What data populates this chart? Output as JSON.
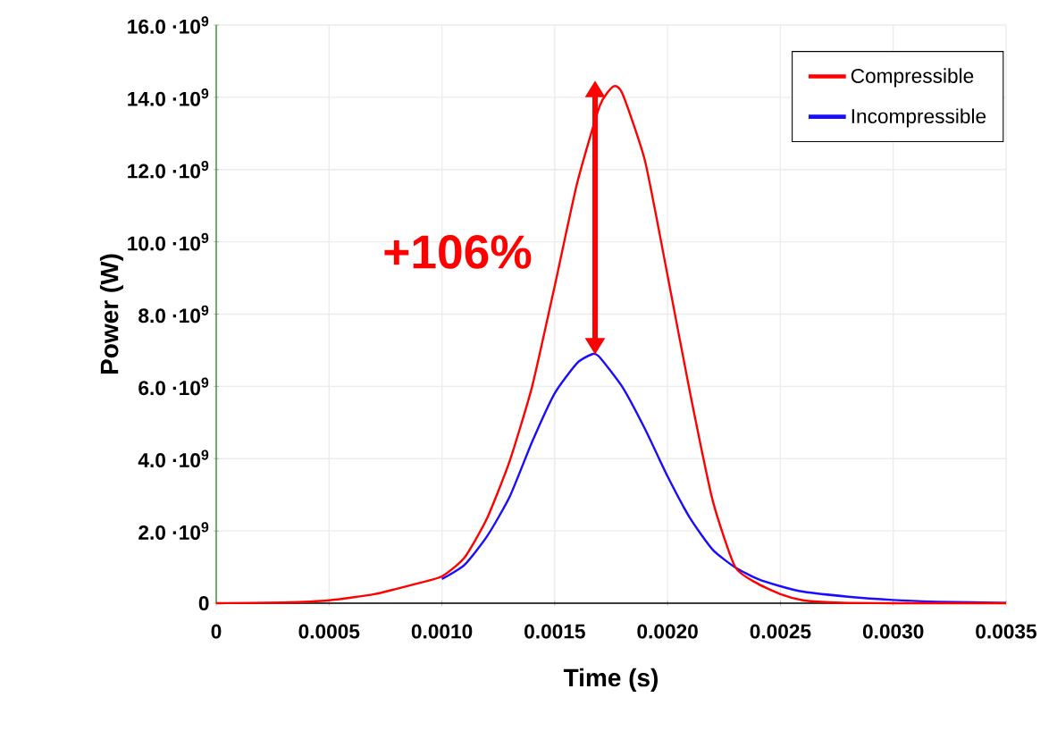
{
  "chart_data": {
    "type": "line",
    "xlabel": "Time (s)",
    "ylabel": "Power (W)",
    "x": [
      0,
      0.0003,
      0.0005,
      0.0007,
      0.0008,
      0.0009,
      0.001,
      0.0011,
      0.0012,
      0.0013,
      0.0014,
      0.0015,
      0.0016,
      0.0017,
      0.00176,
      0.0018,
      0.0019,
      0.002,
      0.0021,
      0.0022,
      0.0023,
      0.0024,
      0.0025,
      0.0026,
      0.0027,
      0.0028,
      0.003,
      0.0035
    ],
    "series": [
      {
        "name": "Compressible",
        "color": "#ff0000",
        "values": [
          0,
          20000000,
          80000000,
          250000000,
          400000000,
          560000000,
          740000000,
          1260000000,
          2350000000,
          3930000000,
          6000000000,
          8780000000,
          11640000000,
          13770000000,
          14300000000,
          14100000000,
          12240000000,
          9070000000,
          5810000000,
          2840000000,
          1000000000,
          540000000,
          250000000,
          80000000,
          30000000,
          10000000,
          0,
          0
        ]
      },
      {
        "name": "Incompressible",
        "color": "#1a0dff",
        "x": [
          0.001,
          0.0011,
          0.0012,
          0.0013,
          0.0014,
          0.0015,
          0.0016,
          0.00167,
          0.0017,
          0.0018,
          0.0019,
          0.002,
          0.0021,
          0.0022,
          0.0023,
          0.0024,
          0.0025,
          0.0026,
          0.0028,
          0.003,
          0.0032,
          0.0035
        ],
        "values": [
          670000000,
          1060000000,
          1850000000,
          2940000000,
          4470000000,
          5810000000,
          6650000000,
          6900000000,
          6800000000,
          5980000000,
          4820000000,
          3510000000,
          2350000000,
          1480000000,
          990000000,
          670000000,
          470000000,
          320000000,
          180000000,
          90000000,
          40000000,
          10000000
        ]
      }
    ],
    "xlim": [
      0,
      0.0035
    ],
    "ylim": [
      0,
      16000000000
    ],
    "xticks": [
      0,
      0.0005,
      {
        "value": 0.001,
        "label": "0.0010"
      },
      0.0015,
      {
        "value": 0.002,
        "label": "0.0020"
      },
      0.0025,
      {
        "value": 0.003,
        "label": "0.0030"
      },
      0.0035
    ],
    "yticks": [
      0,
      {
        "value": 2000000000,
        "label": "2.0 ·10$^{9}$"
      },
      {
        "value": 4000000000,
        "label": "4.0 ·10$^{9}$"
      },
      {
        "value": 6000000000,
        "label": "6.0 ·10$^{9}$"
      },
      {
        "value": 8000000000,
        "label": "8.0 ·10$^{9}$"
      },
      {
        "value": 10000000000,
        "label": "10.0 ·10$^{9}$"
      },
      {
        "value": 12000000000,
        "label": "12.0 ·10$^{9}$"
      },
      {
        "value": 14000000000,
        "label": "14.0 ·10$^{9}$"
      },
      {
        "value": 16000000000,
        "label": "16.0 ·10$^{9}$"
      }
    ],
    "annotations": [
      "+106%"
    ],
    "grid": true,
    "legend": "top right",
    "line_style": "solid",
    "marker": "none"
  }
}
